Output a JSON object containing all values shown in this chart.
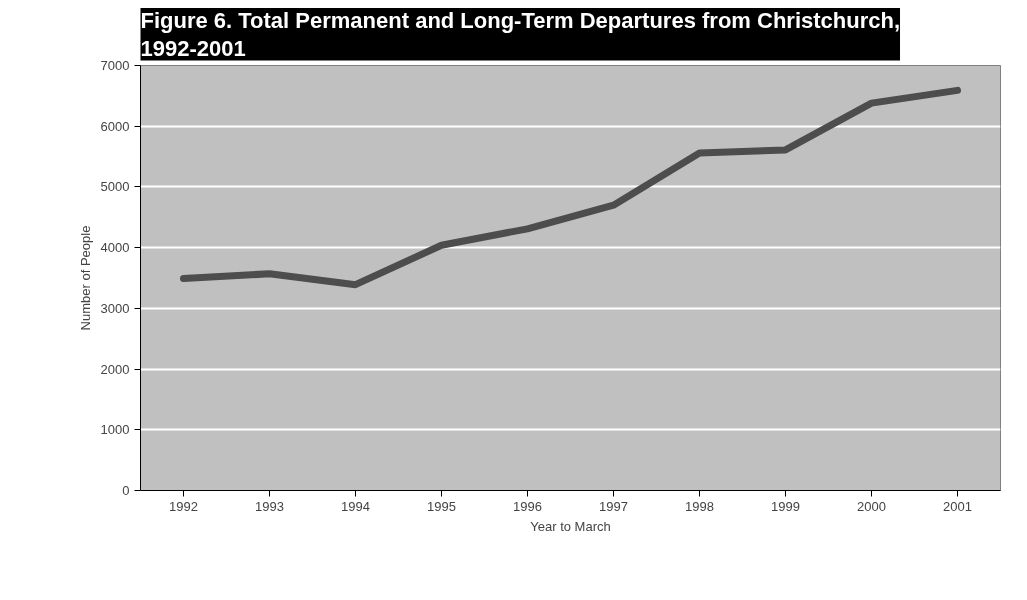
{
  "chart_data": {
    "type": "line",
    "title": "Figure 6. Total Permanent and Long-Term Departures from Christchurch, 1992-2001",
    "xlabel": "Year to March",
    "ylabel": "Number of People",
    "categories": [
      "1992",
      "1993",
      "1994",
      "1995",
      "1996",
      "1997",
      "1998",
      "1999",
      "2000",
      "2001"
    ],
    "series": [
      {
        "color": "#4d4d4d",
        "values": [
          3490,
          3570,
          3390,
          4040,
          4310,
          4700,
          5560,
          5610,
          6380,
          6590
        ]
      }
    ],
    "ylim": [
      0,
      7000
    ],
    "yticks": [
      0,
      1000,
      2000,
      3000,
      4000,
      5000,
      6000,
      7000
    ],
    "grid": "y",
    "marker": "none",
    "line_style": "solid"
  }
}
